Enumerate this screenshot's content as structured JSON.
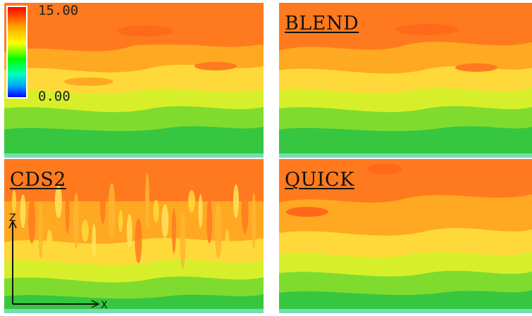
{
  "legend": {
    "max_label": "15.00",
    "min_label": "0.00",
    "gradient_colors": [
      "#ff0000",
      "#ffa500",
      "#ffff00",
      "#00ff00",
      "#00ffc0",
      "#00a0ff",
      "#0000ff"
    ]
  },
  "panels": [
    {
      "id": "tl",
      "label": ""
    },
    {
      "id": "tr",
      "label": "BLEND"
    },
    {
      "id": "bl",
      "label": "CDS2"
    },
    {
      "id": "br",
      "label": "QUICK"
    }
  ],
  "axes": {
    "vertical_label": "Z",
    "horizontal_label": "X"
  },
  "colors": {
    "high": "#ff7a1e",
    "mid_high": "#ffa822",
    "mid": "#ffd93a",
    "mid_low": "#d7ef2a",
    "low": "#7fdc2e",
    "lowest": "#37c640",
    "floor": "#74ddb6"
  }
}
